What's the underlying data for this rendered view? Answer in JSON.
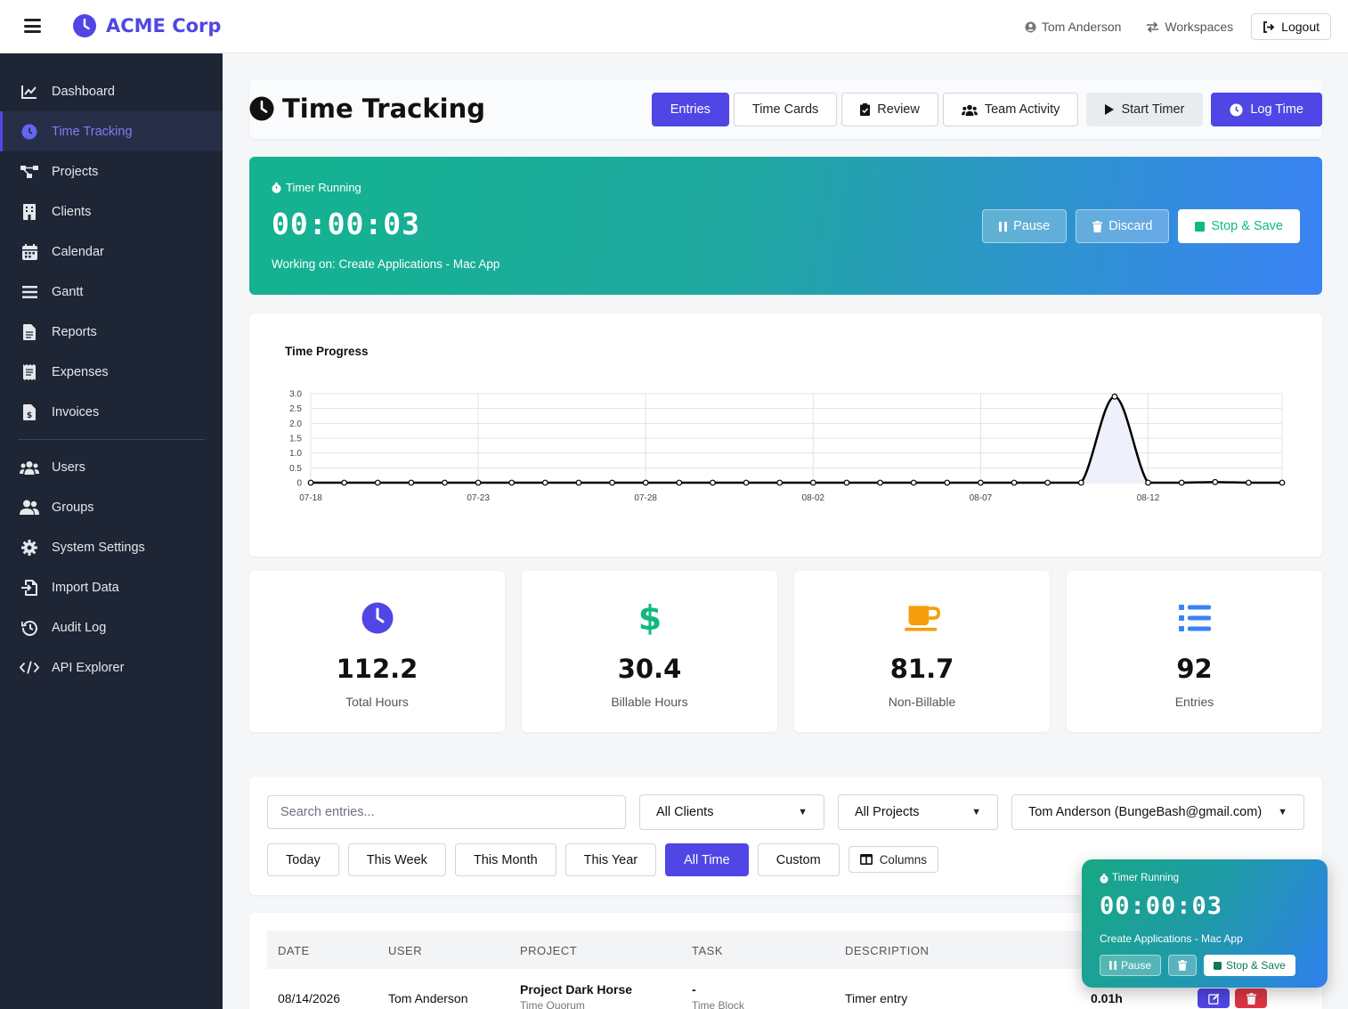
{
  "app": {
    "brand": "ACME Corp"
  },
  "topbar": {
    "user": "Tom Anderson",
    "workspaces": "Workspaces",
    "logout": "Logout"
  },
  "sidebar": {
    "items": [
      {
        "label": "Dashboard",
        "icon": "chart-line-icon"
      },
      {
        "label": "Time Tracking",
        "icon": "clock-icon",
        "active": true
      },
      {
        "label": "Projects",
        "icon": "project-diagram-icon"
      },
      {
        "label": "Clients",
        "icon": "building-icon"
      },
      {
        "label": "Calendar",
        "icon": "calendar-icon"
      },
      {
        "label": "Gantt",
        "icon": "gantt-bars-icon"
      },
      {
        "label": "Reports",
        "icon": "file-icon"
      },
      {
        "label": "Expenses",
        "icon": "receipt-icon"
      },
      {
        "label": "Invoices",
        "icon": "invoice-dollar-icon"
      }
    ],
    "admin_items": [
      {
        "label": "Users",
        "icon": "users-icon"
      },
      {
        "label": "Groups",
        "icon": "user-group-icon"
      },
      {
        "label": "System Settings",
        "icon": "gear-icon"
      },
      {
        "label": "Import Data",
        "icon": "file-import-icon"
      },
      {
        "label": "Audit Log",
        "icon": "history-icon"
      },
      {
        "label": "API Explorer",
        "icon": "code-icon"
      }
    ]
  },
  "header": {
    "title": "Time Tracking",
    "tabs": {
      "entries": "Entries",
      "time_cards": "Time Cards",
      "review": "Review",
      "team_activity": "Team Activity"
    },
    "start_timer": "Start Timer",
    "log_time": "Log Time"
  },
  "timer": {
    "label": "Timer Running",
    "time": "00:00:03",
    "working_on": "Working on: Create Applications - Mac App",
    "pause": "Pause",
    "discard": "Discard",
    "stop_save": "Stop & Save"
  },
  "chart_data": {
    "type": "line",
    "title": "Time Progress",
    "x": [
      "07-18",
      "07-19",
      "07-20",
      "07-21",
      "07-22",
      "07-23",
      "07-24",
      "07-25",
      "07-26",
      "07-27",
      "07-28",
      "07-29",
      "07-30",
      "07-31",
      "08-01",
      "08-02",
      "08-03",
      "08-04",
      "08-05",
      "08-06",
      "08-07",
      "08-08",
      "08-09",
      "08-10",
      "08-11",
      "08-12",
      "08-13",
      "08-14",
      "08-15",
      "08-16"
    ],
    "y": [
      0,
      0,
      0,
      0,
      0,
      0,
      0,
      0,
      0,
      0,
      0,
      0,
      0,
      0,
      0,
      0,
      0,
      0,
      0,
      0,
      0,
      0,
      0,
      0,
      2.9,
      0,
      0,
      0.02,
      0,
      0
    ],
    "x_tick_labels": [
      "07-18",
      "07-23",
      "07-28",
      "08-02",
      "08-07",
      "08-12"
    ],
    "y_ticks": [
      "0",
      "0.5",
      "1.0",
      "1.5",
      "2.0",
      "2.5",
      "3.0"
    ],
    "ylim": [
      0,
      3.0
    ],
    "grid": true,
    "line_color": "#000000",
    "fill_color": "#eef0fb"
  },
  "stats": [
    {
      "value": "112.2",
      "label": "Total Hours",
      "icon": "clock-icon",
      "color": "#4f46e5"
    },
    {
      "value": "30.4",
      "label": "Billable Hours",
      "icon": "dollar-icon",
      "color": "#10b981"
    },
    {
      "value": "81.7",
      "label": "Non-Billable",
      "icon": "mug-icon",
      "color": "#f59e0b"
    },
    {
      "value": "92",
      "label": "Entries",
      "icon": "list-icon",
      "color": "#3b82f6"
    }
  ],
  "filters": {
    "search_placeholder": "Search entries...",
    "client": "All Clients",
    "project": "All Projects",
    "user": "Tom Anderson (BungeBash@gmail.com)",
    "ranges": [
      "Today",
      "This Week",
      "This Month",
      "This Year",
      "All Time",
      "Custom"
    ],
    "active_range": "All Time",
    "columns": "Columns"
  },
  "table": {
    "headers": [
      "DATE",
      "USER",
      "PROJECT",
      "TASK",
      "DESCRIPTION"
    ],
    "rows": [
      {
        "date": "08/14/2026",
        "user": "Tom Anderson",
        "project": "Project Dark Horse",
        "project_sub": "Time Quorum",
        "task": "-",
        "task_sub": "Time Block",
        "description": "Timer entry",
        "hours": "0.01h"
      }
    ]
  },
  "float_timer": {
    "label": "Timer Running",
    "time": "00:00:03",
    "task": "Create Applications - Mac App",
    "pause": "Pause",
    "stop_save": "Stop & Save"
  }
}
